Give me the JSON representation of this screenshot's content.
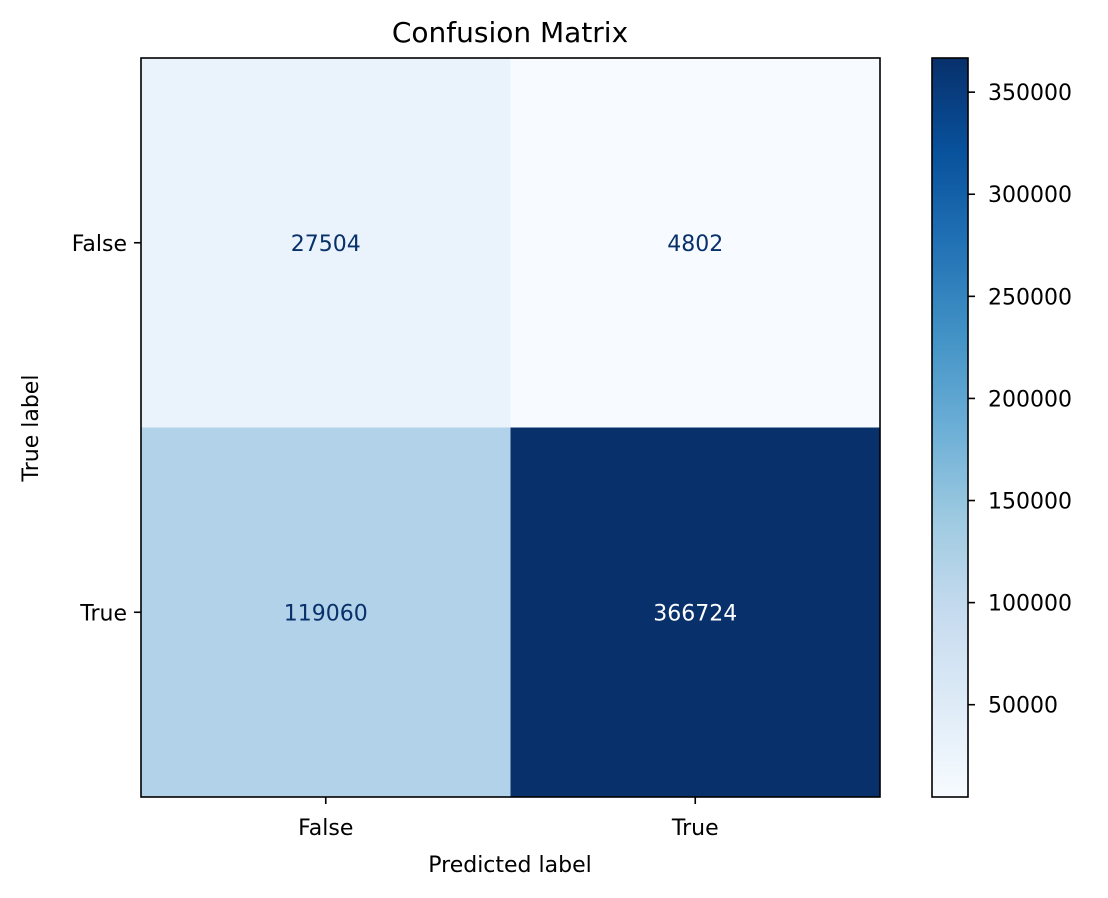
{
  "chart_data": {
    "type": "heatmap",
    "title": "Confusion Matrix",
    "xlabel": "Predicted label",
    "ylabel": "True label",
    "x_categories": [
      "False",
      "True"
    ],
    "y_categories": [
      "False",
      "True"
    ],
    "values": [
      [
        27504,
        4802
      ],
      [
        119060,
        366724
      ]
    ],
    "colormap": "Blues",
    "colorbar": {
      "min": 4802,
      "max": 366724,
      "ticks": [
        50000,
        100000,
        150000,
        200000,
        250000,
        300000,
        350000
      ],
      "tick_labels": [
        "50000",
        "100000",
        "150000",
        "200000",
        "250000",
        "300000",
        "350000"
      ]
    }
  }
}
